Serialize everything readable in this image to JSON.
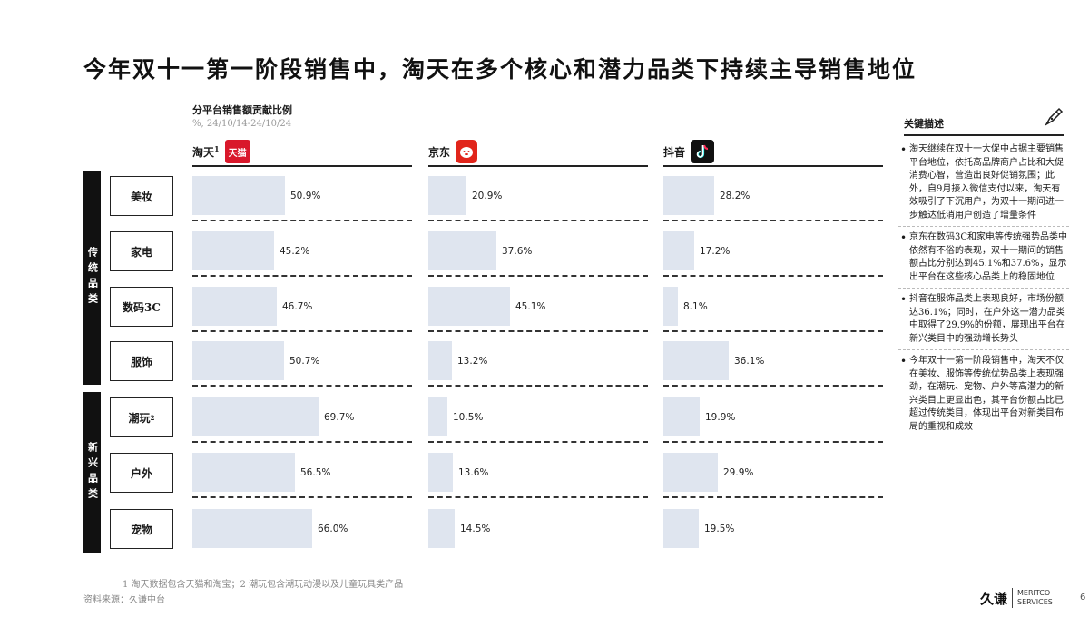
{
  "title": "今年双十一第一阶段销售中，淘天在多个核心和潜力品类下持续主导销售地位",
  "chart_data": {
    "type": "bar",
    "title": "分平台销售额贡献比例",
    "subtitle": "%, 24/10/14-24/10/24",
    "platforms": [
      {
        "name": "淘天",
        "sup": "1",
        "logo": "tmall-logo",
        "logo_text": "天猫"
      },
      {
        "name": "京东",
        "sup": "",
        "logo": "jd-logo"
      },
      {
        "name": "抖音",
        "sup": "",
        "logo": "douyin-logo"
      }
    ],
    "groups": [
      {
        "label": "传统品类",
        "categories": [
          "美妆",
          "家电",
          "数码3C",
          "服饰"
        ]
      },
      {
        "label": "新兴品类",
        "categories": [
          "潮玩",
          "户外",
          "宠物"
        ]
      }
    ],
    "categories": [
      "美妆",
      "家电",
      "数码3C",
      "服饰",
      "潮玩",
      "户外",
      "宠物"
    ],
    "category_sups": [
      "",
      "",
      "",
      "",
      "2",
      "",
      ""
    ],
    "series": [
      {
        "name": "淘天",
        "values": [
          50.9,
          45.2,
          46.7,
          50.7,
          69.7,
          56.5,
          66.0
        ],
        "labels": [
          "50.9%",
          "45.2%",
          "46.7%",
          "50.7%",
          "69.7%",
          "56.5%",
          "66.0%"
        ]
      },
      {
        "name": "京东",
        "values": [
          20.9,
          37.6,
          45.1,
          13.2,
          10.5,
          13.6,
          14.5
        ],
        "labels": [
          "20.9%",
          "37.6%",
          "45.1%",
          "13.2%",
          "10.5%",
          "13.6%",
          "14.5%"
        ]
      },
      {
        "name": "抖音",
        "values": [
          28.2,
          17.2,
          8.1,
          36.1,
          19.9,
          29.9,
          19.5
        ],
        "labels": [
          "28.2%",
          "17.2%",
          "8.1%",
          "36.1%",
          "19.9%",
          "29.9%",
          "19.5%"
        ]
      }
    ],
    "bar_color": "#dfe5ef",
    "ylim": [
      0,
      100
    ]
  },
  "key_desc": {
    "heading": "关键描述",
    "notes": [
      "淘天继续在双十一大促中占据主要销售平台地位，依托高品牌商户占比和大促消费心智，营造出良好促销氛围；此外，自9月接入微信支付以来，淘天有效吸引了下沉用户，为双十一期间进一步触达低消用户创造了增量条件",
      "京东在数码3C和家电等传统强势品类中依然有不俗的表现，双十一期间的销售额占比分别达到45.1%和37.6%，显示出平台在这些核心品类上的稳固地位",
      "抖音在服饰品类上表现良好，市场份额达36.1%；同时，在户外这一潜力品类中取得了29.9%的份额，展现出平台在新兴类目中的强劲增长势头",
      "今年双十一第一阶段销售中，淘天不仅在美妆、服饰等传统优势品类上表现强劲，在潮玩、宠物、户外等高潜力的新兴类目上更显出色，其平台份额占比已超过传统类目，体现出平台对新类目布局的重视和成效"
    ]
  },
  "footnote": "1  淘天数据包含天猫和淘宝；2  潮玩包含潮玩动漫以及儿童玩具类产品",
  "source": "资料来源：久谦中台",
  "brand": {
    "cn": "久谦",
    "en1": "MERITCO",
    "en2": "SERVICES"
  },
  "page_number": "6"
}
